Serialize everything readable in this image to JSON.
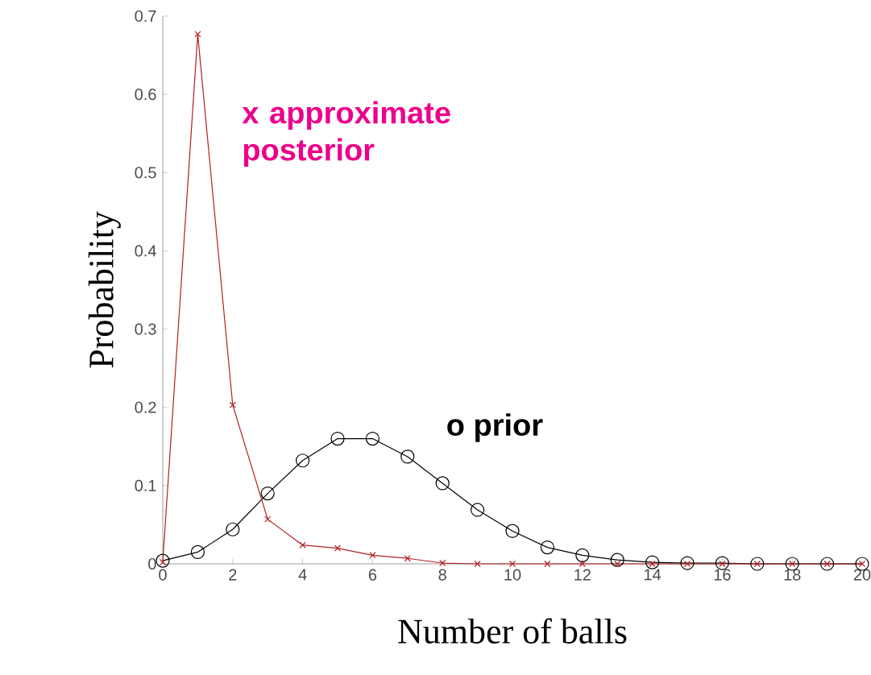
{
  "chart_data": {
    "type": "line",
    "xlabel": "Number of balls",
    "ylabel": "Probability",
    "x": [
      0,
      1,
      2,
      3,
      4,
      5,
      6,
      7,
      8,
      9,
      10,
      11,
      12,
      13,
      14,
      15,
      16,
      17,
      18,
      19,
      20
    ],
    "series": [
      {
        "color": "#000000",
        "marker": "circle",
        "values": [
          0.004,
          0.015,
          0.044,
          0.09,
          0.132,
          0.16,
          0.16,
          0.137,
          0.103,
          0.069,
          0.042,
          0.021,
          0.011,
          0.005,
          0.002,
          0.001,
          0.001,
          0,
          0,
          0,
          0
        ]
      },
      {
        "color": "#b22222",
        "marker": "cross",
        "values": [
          0.002,
          0.677,
          0.203,
          0.057,
          0.024,
          0.02,
          0.011,
          0.007,
          0.001,
          0,
          0,
          0,
          0,
          0,
          0,
          0,
          0,
          0,
          0,
          0,
          0
        ]
      }
    ],
    "annotations": [
      "x  approximate posterior",
      "o  prior"
    ],
    "xlim": [
      0,
      20
    ],
    "ylim": [
      0,
      0.7
    ],
    "xticks": [
      0,
      2,
      4,
      6,
      8,
      10,
      12,
      14,
      16,
      18,
      20
    ],
    "yticks": [
      0,
      0.1,
      0.2,
      0.3,
      0.4,
      0.5,
      0.6,
      0.7
    ],
    "grid": false,
    "line_style": "solid"
  }
}
